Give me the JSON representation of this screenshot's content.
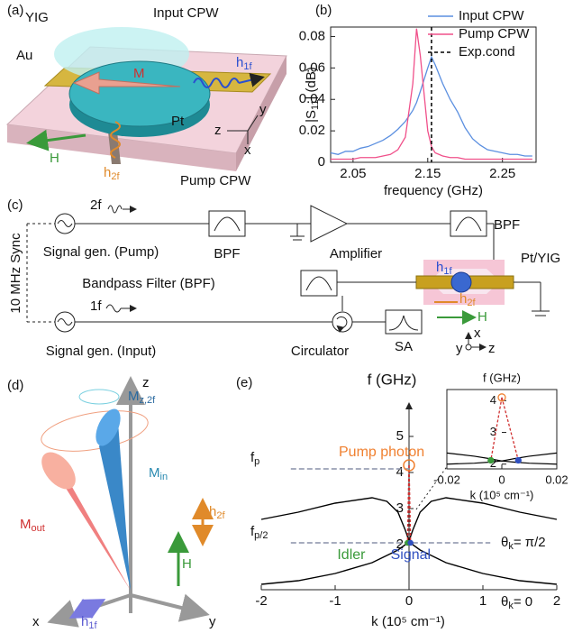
{
  "chart_data": [
    {
      "type": "line",
      "panel": "(b)",
      "xlabel": "frequency (GHz)",
      "ylabel": [
        "|S",
        "11",
        "| (dB)"
      ],
      "x": [
        2.02,
        2.03,
        2.04,
        2.05,
        2.06,
        2.07,
        2.08,
        2.09,
        2.1,
        2.11,
        2.12,
        2.13,
        2.135,
        2.14,
        2.15,
        2.155,
        2.16,
        2.17,
        2.18,
        2.19,
        2.2,
        2.21,
        2.22,
        2.23,
        2.24,
        2.25,
        2.26,
        2.27,
        2.28,
        2.29
      ],
      "series": [
        {
          "name": "Input CPW",
          "color": "#5b8fe0",
          "values": [
            0.006,
            0.005,
            0.007,
            0.007,
            0.009,
            0.01,
            0.012,
            0.014,
            0.017,
            0.021,
            0.026,
            0.033,
            0.038,
            0.045,
            0.06,
            0.067,
            0.062,
            0.05,
            0.04,
            0.032,
            0.022,
            0.015,
            0.011,
            0.008,
            0.007,
            0.006,
            0.005,
            0.005,
            0.004,
            0.004
          ]
        },
        {
          "name": "Pump CPW",
          "color": "#f0508a",
          "values": [
            0.002,
            0.002,
            0.002,
            0.002,
            0.003,
            0.003,
            0.003,
            0.004,
            0.005,
            0.008,
            0.016,
            0.05,
            0.085,
            0.068,
            0.02,
            0.01,
            0.006,
            0.004,
            0.003,
            0.003,
            0.002,
            0.002,
            0.002,
            0.002,
            0.002,
            0.002,
            0.002,
            0.002,
            0.002,
            0.002
          ]
        }
      ],
      "reference_line": {
        "name": "Exp.cond",
        "x": 2.155,
        "color": "#000000"
      },
      "xlim": [
        2.02,
        2.295
      ],
      "xticks": [
        2.05,
        2.15,
        2.25
      ],
      "ylim": [
        0,
        0.086
      ],
      "yticks": [
        0,
        0.02,
        0.04,
        0.06,
        0.08
      ],
      "legend": "upper right"
    },
    {
      "type": "line",
      "panel": "(e)",
      "xlabel": "k (10⁵ cm⁻¹)",
      "ylabel": "f (GHz)",
      "x": [
        -2,
        -1.5,
        -1,
        -0.5,
        -0.3,
        -0.15,
        -0.05,
        0,
        0.05,
        0.15,
        0.3,
        0.5,
        1,
        1.5,
        2
      ],
      "series": [
        {
          "name": [
            "θ",
            "k",
            "= π/2"
          ],
          "color": "#000000",
          "values": [
            2.7,
            2.9,
            3.15,
            3.3,
            3.2,
            2.9,
            2.4,
            2.1,
            2.4,
            2.9,
            3.2,
            3.3,
            3.15,
            2.9,
            2.7
          ]
        },
        {
          "name": [
            "θ",
            "k",
            "= 0"
          ],
          "color": "#000000",
          "values": [
            0.9,
            1.0,
            1.2,
            1.5,
            1.7,
            1.85,
            2.0,
            2.05,
            2.0,
            1.85,
            1.7,
            1.5,
            1.2,
            1.0,
            0.9
          ]
        }
      ],
      "points": [
        {
          "name": "Pump photon",
          "x": 0,
          "y": 4.2,
          "color": "#f08030"
        },
        {
          "name": "Idler",
          "x": -0.02,
          "y": 2.05,
          "color": "#3a9a3a"
        },
        {
          "name": "Signal",
          "x": 0.02,
          "y": 2.05,
          "color": "#3050c0"
        }
      ],
      "levels": [
        {
          "label": [
            "f",
            "p"
          ],
          "y": 4.1,
          "x": [
            -1.6,
            0
          ]
        },
        {
          "label": [
            "f",
            "p/2"
          ],
          "y": 2.05,
          "x": [
            -1.6,
            1.1
          ]
        }
      ],
      "xlim": [
        -2,
        2
      ],
      "xticks": [
        -2,
        -1,
        0,
        1,
        2
      ],
      "ylim": [
        0.75,
        5.6
      ],
      "yticks": [
        2,
        3,
        4,
        5
      ]
    },
    {
      "type": "line",
      "xlabel": "k (10⁵ cm⁻¹)",
      "ylabel": "f (GHz)",
      "x": [
        -0.02,
        -0.01,
        -0.005,
        0,
        0.005,
        0.01,
        0.02
      ],
      "series": [
        {
          "color": "#000000",
          "values": [
            2.35,
            2.25,
            2.18,
            2.1,
            2.18,
            2.25,
            2.35
          ]
        },
        {
          "color": "#000000",
          "values": [
            2.0,
            2.03,
            2.06,
            2.1,
            2.06,
            2.03,
            2.0
          ]
        }
      ],
      "points": [
        {
          "x": 0,
          "y": 4.1,
          "color": "#f08030"
        },
        {
          "x": -0.004,
          "y": 2.12,
          "color": "#3a9a3a"
        },
        {
          "x": 0.006,
          "y": 2.12,
          "color": "#3050c0"
        }
      ],
      "xlim": [
        -0.02,
        0.02
      ],
      "xticks": [
        -0.02,
        0,
        0.02
      ],
      "ylim": [
        1.85,
        4.35
      ],
      "yticks": [
        2,
        3,
        4
      ]
    }
  ],
  "diagrams": {
    "a": {
      "panel": "(a)",
      "yig": "YIG",
      "input_cpw": "Input CPW",
      "au": "Au",
      "m": "M",
      "h1f": [
        "h",
        "1f"
      ],
      "pt": "Pt",
      "h": "H",
      "z": "z",
      "y": "y",
      "x": "x",
      "h2f": [
        "h",
        "2f"
      ],
      "pump_cpw": "Pump CPW"
    },
    "c": {
      "panel": "(c)",
      "f2": "2f",
      "bpf1": "BPF",
      "amplifier": "Amplifier",
      "bpf2": "BPF",
      "sync": "10 MHz Sync",
      "gen_pump": "Signal gen. (Pump)",
      "bpf_full": "Bandpass Filter (BPF)",
      "pt_yig": "Pt/YIG",
      "h1f": [
        "h",
        "1f"
      ],
      "h2f": [
        "h",
        "2f"
      ],
      "h": "H",
      "f1": "1f",
      "gen_input": "Signal gen. (Input)",
      "circulator": "Circulator",
      "sa": "SA",
      "x": "x",
      "y": "y",
      "z": "z"
    },
    "d": {
      "panel": "(d)",
      "z": "z",
      "mz2f": [
        "M",
        "z,2f"
      ],
      "min": [
        "M",
        "in"
      ],
      "mout": [
        "M",
        "out"
      ],
      "h": "H",
      "h2f": [
        "h",
        "2f"
      ],
      "x": "x",
      "y": "y",
      "h1f": [
        "h",
        "1f"
      ]
    }
  }
}
